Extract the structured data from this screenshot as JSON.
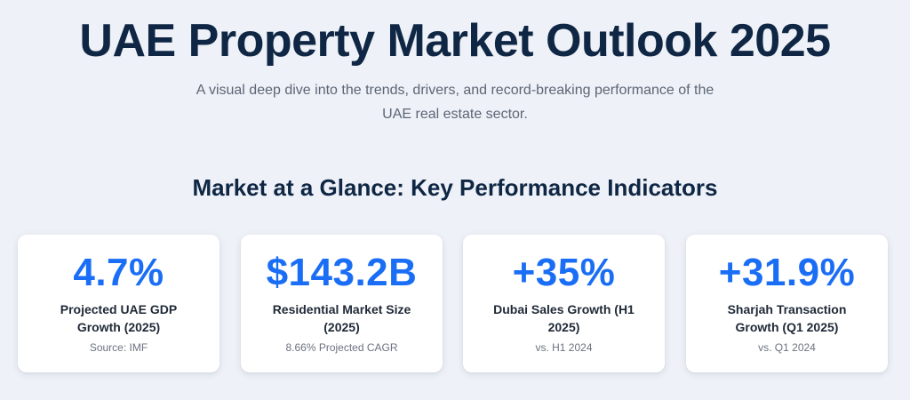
{
  "header": {
    "title": "UAE Property Market Outlook 2025",
    "subtitle": "A visual deep dive into the trends, drivers, and record-breaking performance of the UAE real estate sector."
  },
  "kpi_section": {
    "title": "Market at a Glance: Key Performance Indicators",
    "cards": [
      {
        "value": "4.7%",
        "label": "Projected UAE GDP Growth (2025)",
        "note": "Source: IMF"
      },
      {
        "value": "$143.2B",
        "label": "Residential Market Size (2025)",
        "note": "8.66% Projected CAGR"
      },
      {
        "value": "+35%",
        "label": "Dubai Sales Growth (H1 2025)",
        "note": "vs. H1 2024"
      },
      {
        "value": "+31.9%",
        "label": "Sharjah Transaction Growth (Q1 2025)",
        "note": "vs. Q1 2024"
      }
    ]
  },
  "colors": {
    "background": "#eef1f7",
    "heading": "#0f2744",
    "accent": "#1a6ef5",
    "muted": "#5d6675"
  }
}
